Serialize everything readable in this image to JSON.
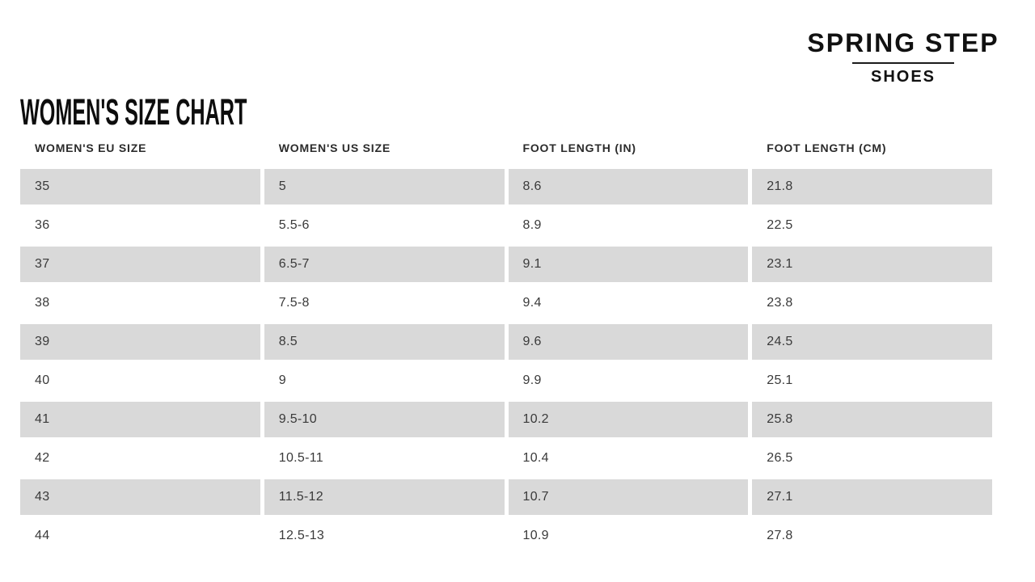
{
  "page": {
    "title": "WOMEN'S SIZE CHART"
  },
  "brand": {
    "name": "SPRING STEP",
    "subtitle": "SHOES"
  },
  "table": {
    "headers": [
      "WOMEN'S EU SIZE",
      "WOMEN'S US SIZE",
      "FOOT LENGTH (IN)",
      "FOOT LENGTH (CM)"
    ],
    "rows": [
      [
        "35",
        "5",
        "8.6",
        "21.8"
      ],
      [
        "36",
        "5.5-6",
        "8.9",
        "22.5"
      ],
      [
        "37",
        "6.5-7",
        "9.1",
        "23.1"
      ],
      [
        "38",
        "7.5-8",
        "9.4",
        "23.8"
      ],
      [
        "39",
        "8.5",
        "9.6",
        "24.5"
      ],
      [
        "40",
        "9",
        "9.9",
        "25.1"
      ],
      [
        "41",
        "9.5-10",
        "10.2",
        "25.8"
      ],
      [
        "42",
        "10.5-11",
        "10.4",
        "26.5"
      ],
      [
        "43",
        "11.5-12",
        "10.7",
        "27.1"
      ],
      [
        "44",
        "12.5-13",
        "10.9",
        "27.8"
      ]
    ]
  },
  "colors": {
    "row_stripe": "#d9d9d9",
    "data_text": "#3a3a3a",
    "header_text": "#2b2b2b",
    "heading_text": "#0d0d0d"
  }
}
